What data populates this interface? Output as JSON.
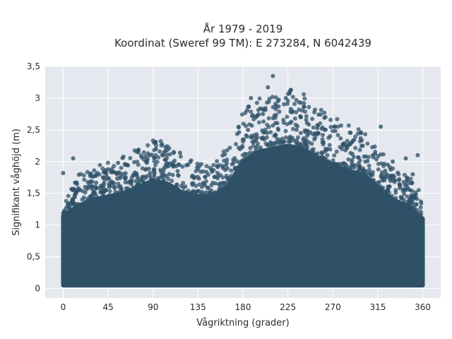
{
  "chart_data": {
    "type": "scatter",
    "title": "År 1979 - 2019",
    "subtitle": "Koordinat (Sweref 99 TM): E 273284, N 6042439",
    "xlabel": "Vågriktning (grader)",
    "ylabel": "Signifikant våghöjd (m)",
    "xlim": [
      -18,
      378
    ],
    "ylim": [
      -0.15,
      3.5
    ],
    "x_ticks": [
      0,
      45,
      90,
      135,
      180,
      225,
      270,
      315,
      360
    ],
    "x_tick_labels": [
      "0",
      "45",
      "90",
      "135",
      "180",
      "225",
      "270",
      "315",
      "360"
    ],
    "y_ticks": [
      0,
      0.5,
      1,
      1.5,
      2,
      2.5,
      3,
      3.5
    ],
    "y_tick_labels": [
      "0",
      "0,5",
      "1",
      "1,5",
      "2",
      "2,5",
      "3",
      "3,5"
    ],
    "grid": true,
    "marker_color": "#2f5168",
    "plot_background": "#e5e8ef",
    "envelope": {
      "x": [
        0,
        15,
        30,
        45,
        60,
        75,
        90,
        105,
        120,
        135,
        150,
        165,
        180,
        195,
        210,
        225,
        240,
        255,
        270,
        285,
        300,
        315,
        330,
        345,
        360
      ],
      "max_height": [
        1.15,
        1.3,
        1.4,
        1.45,
        1.5,
        1.6,
        1.7,
        1.65,
        1.5,
        1.45,
        1.45,
        1.6,
        2.0,
        2.15,
        2.2,
        2.25,
        2.2,
        2.05,
        1.95,
        1.85,
        1.8,
        1.6,
        1.4,
        1.3,
        1.1
      ]
    },
    "outliers": [
      {
        "x": 0,
        "y": 1.82
      },
      {
        "x": 10,
        "y": 2.05
      },
      {
        "x": 27,
        "y": 1.8
      },
      {
        "x": 45,
        "y": 1.88
      },
      {
        "x": 55,
        "y": 1.98
      },
      {
        "x": 64,
        "y": 1.95
      },
      {
        "x": 90,
        "y": 2.33
      },
      {
        "x": 93,
        "y": 2.2
      },
      {
        "x": 100,
        "y": 2.1
      },
      {
        "x": 117,
        "y": 2.14
      },
      {
        "x": 125,
        "y": 1.95
      },
      {
        "x": 160,
        "y": 1.9
      },
      {
        "x": 185,
        "y": 2.5
      },
      {
        "x": 188,
        "y": 3.0
      },
      {
        "x": 200,
        "y": 2.75
      },
      {
        "x": 205,
        "y": 3.17
      },
      {
        "x": 210,
        "y": 3.35
      },
      {
        "x": 215,
        "y": 2.95
      },
      {
        "x": 223,
        "y": 3.0
      },
      {
        "x": 228,
        "y": 3.13
      },
      {
        "x": 238,
        "y": 2.7
      },
      {
        "x": 255,
        "y": 2.45
      },
      {
        "x": 262,
        "y": 2.5
      },
      {
        "x": 272,
        "y": 2.55
      },
      {
        "x": 300,
        "y": 2.25
      },
      {
        "x": 310,
        "y": 2.1
      },
      {
        "x": 318,
        "y": 2.55
      },
      {
        "x": 325,
        "y": 1.95
      },
      {
        "x": 330,
        "y": 2.0
      },
      {
        "x": 343,
        "y": 2.05
      },
      {
        "x": 350,
        "y": 1.8
      },
      {
        "x": 355,
        "y": 2.1
      },
      {
        "x": 358,
        "y": 1.28
      }
    ]
  }
}
